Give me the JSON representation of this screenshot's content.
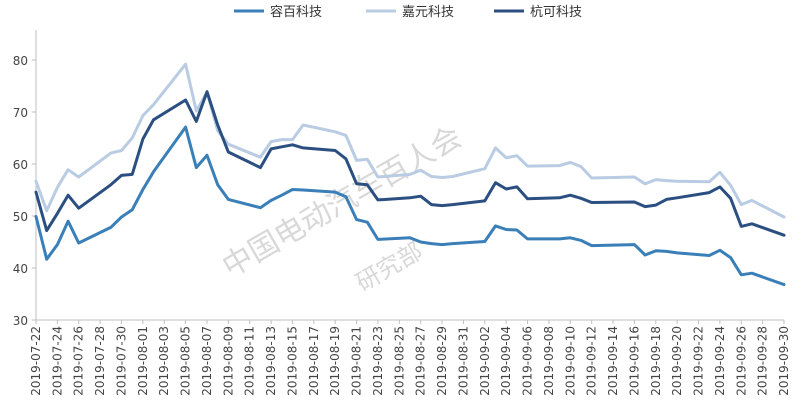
{
  "chart_data": {
    "type": "line",
    "title": "",
    "xlabel": "",
    "ylabel": "",
    "ylim": [
      30,
      85
    ],
    "yticks": [
      30,
      40,
      50,
      60,
      70,
      80
    ],
    "grid": false,
    "legend_position": "top",
    "x": [
      "2019-07-22",
      "2019-07-23",
      "2019-07-24",
      "2019-07-25",
      "2019-07-26",
      "2019-07-29",
      "2019-07-30",
      "2019-07-31",
      "2019-08-01",
      "2019-08-02",
      "2019-08-05",
      "2019-08-06",
      "2019-08-07",
      "2019-08-08",
      "2019-08-09",
      "2019-08-12",
      "2019-08-13",
      "2019-08-14",
      "2019-08-15",
      "2019-08-16",
      "2019-08-19",
      "2019-08-20",
      "2019-08-21",
      "2019-08-22",
      "2019-08-23",
      "2019-08-26",
      "2019-08-27",
      "2019-08-28",
      "2019-08-29",
      "2019-08-30",
      "2019-09-02",
      "2019-09-03",
      "2019-09-04",
      "2019-09-05",
      "2019-09-06",
      "2019-09-09",
      "2019-09-10",
      "2019-09-11",
      "2019-09-12",
      "2019-09-16",
      "2019-09-17",
      "2019-09-18",
      "2019-09-19",
      "2019-09-20",
      "2019-09-23",
      "2019-09-24",
      "2019-09-25",
      "2019-09-26",
      "2019-09-27",
      "2019-09-30"
    ],
    "x_tick_labels": [
      "2019-07-22",
      "2019-07-24",
      "2019-07-26",
      "2019-07-28",
      "2019-07-30",
      "2019-08-01",
      "2019-08-03",
      "2019-08-05",
      "2019-08-07",
      "2019-08-09",
      "2019-08-11",
      "2019-08-13",
      "2019-08-15",
      "2019-08-17",
      "2019-08-19",
      "2019-08-21",
      "2019-08-23",
      "2019-08-25",
      "2019-08-27",
      "2019-08-29",
      "2019-08-31",
      "2019-09-02",
      "2019-09-04",
      "2019-09-06",
      "2019-09-08",
      "2019-09-10",
      "2019-09-12",
      "2019-09-14",
      "2019-09-16",
      "2019-09-18",
      "2019-09-20",
      "2019-09-22",
      "2019-09-24",
      "2019-09-26",
      "2019-09-28",
      "2019-09-30"
    ],
    "series": [
      {
        "name": "容百科技",
        "color": "#3a7fb8",
        "width": 3,
        "values": [
          49.9,
          41.7,
          44.5,
          49.0,
          44.8,
          47.8,
          49.8,
          51.2,
          55.1,
          58.5,
          67.1,
          59.3,
          61.7,
          56.0,
          53.2,
          51.6,
          53.0,
          54.0,
          55.1,
          55.0,
          54.6,
          53.7,
          49.3,
          48.8,
          45.5,
          45.8,
          45.0,
          44.7,
          44.5,
          44.7,
          45.1,
          48.1,
          47.4,
          47.3,
          45.6,
          45.6,
          45.8,
          45.3,
          44.3,
          44.5,
          42.5,
          43.3,
          43.2,
          42.9,
          42.4,
          43.4,
          42.0,
          38.7,
          39.0,
          36.8
        ]
      },
      {
        "name": "嘉元科技",
        "color": "#b9cce3",
        "width": 3,
        "values": [
          56.7,
          51.0,
          55.5,
          58.9,
          57.5,
          62.1,
          62.6,
          65.0,
          69.3,
          71.4,
          79.2,
          70.2,
          73.8,
          66.4,
          63.8,
          61.3,
          64.3,
          64.7,
          64.7,
          67.5,
          66.2,
          65.5,
          60.7,
          60.9,
          57.5,
          58.0,
          58.8,
          57.6,
          57.4,
          57.6,
          59.1,
          63.1,
          61.2,
          61.6,
          59.6,
          59.7,
          60.3,
          59.5,
          57.3,
          57.5,
          56.2,
          57.0,
          56.8,
          56.7,
          56.6,
          58.4,
          55.9,
          52.2,
          53.0,
          49.8
        ]
      },
      {
        "name": "杭可科技",
        "color": "#2b4f80",
        "width": 3,
        "values": [
          54.6,
          47.2,
          50.5,
          54.0,
          51.5,
          56.0,
          57.8,
          58.0,
          64.8,
          68.5,
          72.3,
          68.2,
          73.9,
          67.5,
          62.3,
          59.3,
          62.9,
          63.3,
          63.7,
          63.1,
          62.6,
          61.0,
          56.2,
          56.0,
          53.1,
          53.5,
          53.8,
          52.2,
          52.0,
          52.2,
          52.9,
          56.4,
          55.2,
          55.6,
          53.3,
          53.5,
          54.0,
          53.4,
          52.6,
          52.7,
          51.8,
          52.1,
          53.2,
          53.5,
          54.5,
          55.6,
          53.4,
          48.0,
          48.5,
          46.3
        ]
      }
    ]
  },
  "watermark": {
    "line1": "中国电动汽车百人会",
    "line2": "研究部"
  }
}
